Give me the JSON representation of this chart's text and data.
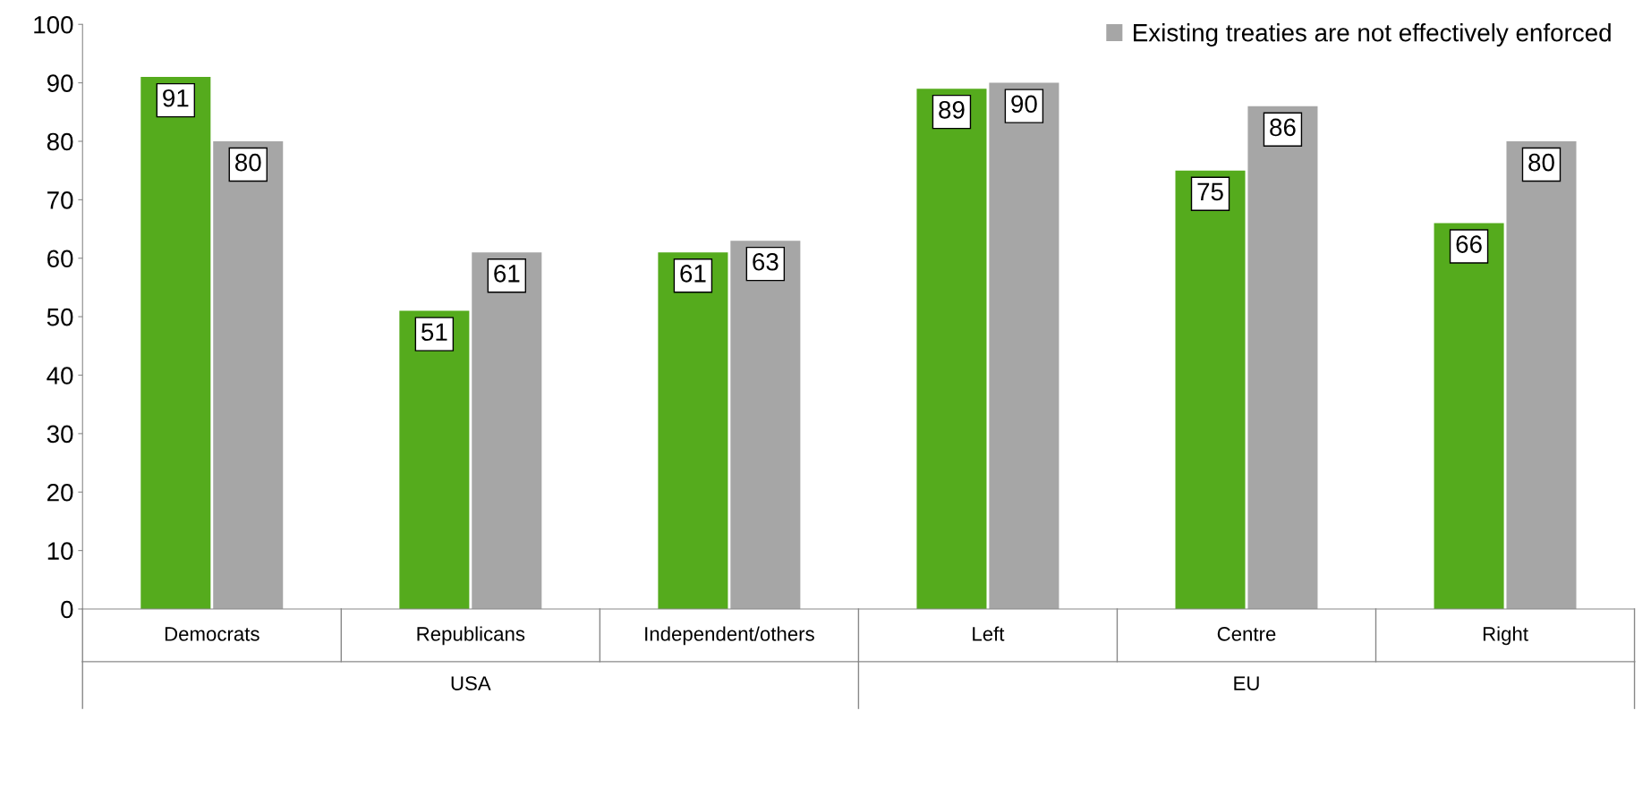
{
  "chart_data": {
    "type": "bar",
    "categories": [
      "Democrats",
      "Republicans",
      "Independent/others",
      "Left",
      "Centre",
      "Right"
    ],
    "series": [
      {
        "color": "#55ab1d",
        "values": [
          91,
          51,
          61,
          89,
          75,
          66
        ]
      },
      {
        "name": "Existing treaties are not effectively enforced",
        "color": "#a6a6a6",
        "values": [
          80,
          61,
          63,
          90,
          86,
          80
        ]
      }
    ],
    "annotations": [
      "USA",
      "EU"
    ],
    "ylim": [
      0,
      100
    ],
    "yticks": [
      0,
      10,
      20,
      30,
      40,
      50,
      60,
      70,
      80,
      90,
      100
    ],
    "data_labels": true,
    "grid": false,
    "legend": "top right"
  }
}
